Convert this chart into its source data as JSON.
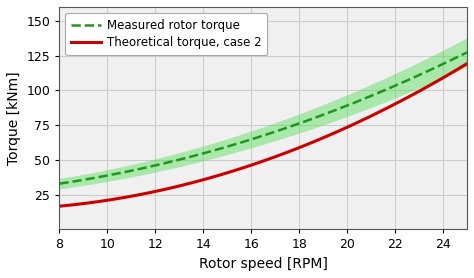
{
  "xlabel": "Rotor speed [RPM]",
  "ylabel": "Torque [kNm]",
  "xlim": [
    8,
    25
  ],
  "ylim": [
    0,
    160
  ],
  "xticks": [
    8,
    10,
    12,
    14,
    16,
    18,
    20,
    22,
    24
  ],
  "yticks": [
    25,
    50,
    75,
    100,
    125,
    150
  ],
  "legend_measured": "Measured rotor torque",
  "legend_theoretical": "Theoretical torque, case 2",
  "measured_color": "#1a9a1a",
  "theoretical_color": "#cc0000",
  "band_color": "#55dd55",
  "band_alpha": 0.45,
  "background_color": "#f0f0f0",
  "grid_color": "#cccccc",
  "figsize": [
    4.74,
    2.78
  ],
  "dpi": 100,
  "measured_a": 0.175,
  "measured_b": -0.22,
  "measured_c": 23.5,
  "theoretical_a": 0.26,
  "theoretical_b": -2.55,
  "theoretical_c": 20.5,
  "spread_a": 0.012,
  "spread_b": 0.0,
  "spread_c": 3.0
}
